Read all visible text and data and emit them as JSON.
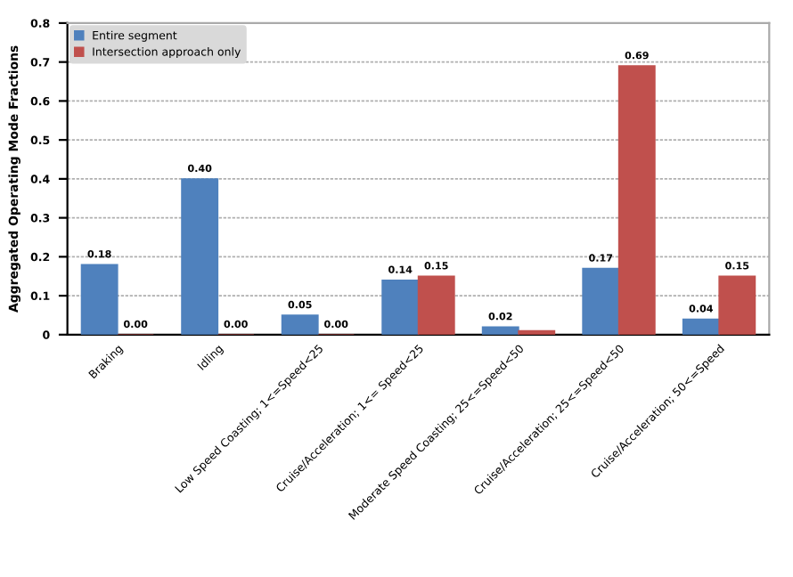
{
  "chart_data": {
    "type": "bar",
    "ylabel": "Aggregated Operating Mode Fractions",
    "categories": [
      "Braking",
      "Idling",
      "Low Speed Coasting; 1<=Speed<25",
      "Cruise/Acceleration; 1<= Speed<25",
      "Moderate Speed Coasting; 25<=Speed<50",
      "Cruise/Acceleration; 25<=Speed<50",
      "Cruise/Acceleration; 50<=Speed"
    ],
    "series": [
      {
        "name": "Entire segment",
        "color": "#4f81bd",
        "values": [
          0.18,
          0.4,
          0.05,
          0.14,
          0.02,
          0.17,
          0.04
        ],
        "value_labels": [
          "0.18",
          "0.40",
          "0.05",
          "0.14",
          "0.02",
          "0.17",
          "0.04"
        ]
      },
      {
        "name": "Intersection approach only",
        "color": "#c0504d",
        "values": [
          0.0,
          0.0,
          0.0,
          0.15,
          0.01,
          0.69,
          0.15
        ],
        "value_labels": [
          "0.00",
          "0.00",
          "0.00",
          "0.15",
          null,
          "0.69",
          "0.15"
        ]
      }
    ],
    "ylim": [
      0,
      0.8
    ],
    "yticks": [
      0,
      0.1,
      0.2,
      0.3,
      0.4,
      0.5,
      0.6,
      0.7,
      0.8
    ],
    "grid": "y",
    "legend": "top left"
  }
}
